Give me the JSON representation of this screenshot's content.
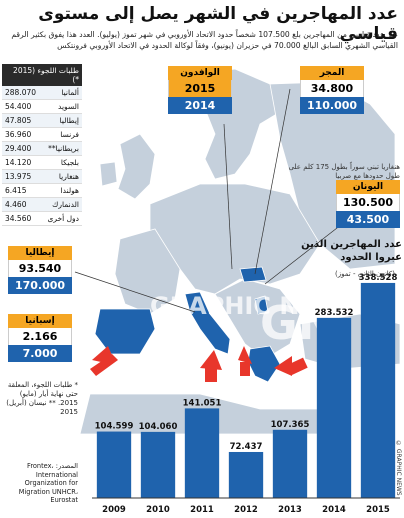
{
  "title": "عدد المهاجرين في الشهر يصل إلى مستوى قياسي",
  "intro": "عبر عدد قياسي من المهاجرين بلغ 107.500 شخصاً حدود الاتحاد الأوروبي في شهر تموز (يوليو). العدد هذا يفوق بكثير الرقم القياسي الشهري السابق البالغ 70.000 في حزيران (يونيو)، وفقاً لوكالة الحدود في الاتحاد الأوروبي فرونتكس",
  "asylum": {
    "header": "طلبات اللجوء (2015 *)",
    "rows": [
      {
        "country": "ألمانيا",
        "value": "288.070"
      },
      {
        "country": "السويد",
        "value": "54.400"
      },
      {
        "country": "إيطاليا",
        "value": "47.805"
      },
      {
        "country": "فرنسا",
        "value": "36.960"
      },
      {
        "country": "بريطانيا**",
        "value": "29.400"
      },
      {
        "country": "بلجيكا",
        "value": "14.120"
      },
      {
        "country": "هنغاريا",
        "value": "13.975"
      },
      {
        "country": "هولندا",
        "value": "6.415"
      },
      {
        "country": "الدنمارك",
        "value": "4.460"
      },
      {
        "country": "دول أخرى",
        "value": "34.560"
      }
    ],
    "note": "* طلبات اللجوء، المعلقة حتى نهاية أيار (مايو) 2015. ** نيسان (أبريل) 2015"
  },
  "source": "المصدر: Frontex، International Organization for Migration UNHCR، Eurostat",
  "boxes": {
    "west_balkans": {
      "label": "الوافدون",
      "y2015": "2015",
      "y2014": "2014"
    },
    "hungary": {
      "label": "المجر",
      "v2015": "34.800",
      "v2014": "110.000"
    },
    "greece": {
      "label": "اليونان",
      "v2015": "130.500",
      "v2014": "43.500"
    },
    "italy": {
      "label": "إيطاليا",
      "v2015": "93.540",
      "v2014": "170.000"
    },
    "spain": {
      "label": "إسبانيا",
      "v2015": "2.166",
      "v2014": "7.000"
    }
  },
  "balkan_note": "هنغاريا تبني سوراً بطول 175 كلم على طول حدودها مع صربيا",
  "chart_title": "عدد المهاجرين الذين عبروا الحدود",
  "chart_subtitle": "(كانون الثاني - تموز)",
  "chart_data": {
    "type": "bar",
    "categories": [
      "2009",
      "2010",
      "2011",
      "2012",
      "2013",
      "2014",
      "2015"
    ],
    "values": [
      104599,
      104060,
      141051,
      72437,
      107365,
      283532,
      338528
    ],
    "value_labels": [
      "104.599",
      "104.060",
      "141.051",
      "72.437",
      "107.365",
      "283.532",
      "338.528"
    ],
    "ylim": [
      0,
      340000
    ]
  },
  "watermark": "GRAPHIC NEWS",
  "watermark_short": "GN",
  "credit": "© GRAPHIC NEWS",
  "colors": {
    "accent": "#f5a623",
    "blue": "#1f63ad",
    "land": "#c5d0dc",
    "sea": "#ffffff",
    "highlight": "#1f63ad",
    "arrow": "#e8362b"
  }
}
